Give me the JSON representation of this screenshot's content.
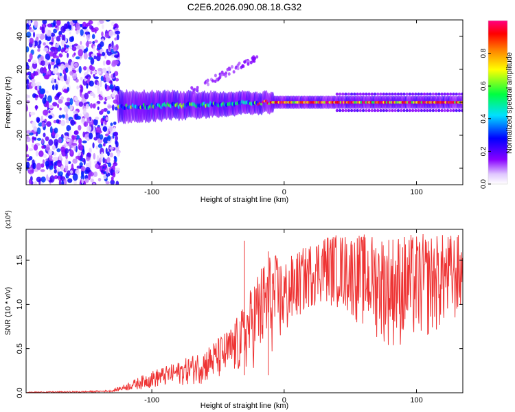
{
  "title": "C2E6.2026.090.08.18.G32",
  "chart_data": [
    {
      "type": "heatmap",
      "name": "spectrogram",
      "xlabel": "Height of straight line (km)",
      "ylabel": "Frequency (Hz)",
      "xlim": [
        -195,
        135
      ],
      "ylim": [
        -50,
        50
      ],
      "xticks": [
        -100,
        0,
        100
      ],
      "xtick_labels": [
        "-100",
        "0",
        "100"
      ],
      "yticks": [
        -40,
        -20,
        0,
        20,
        40
      ],
      "ytick_labels": [
        "-40",
        "-20",
        "0",
        "20",
        "40"
      ],
      "colorbar": {
        "label": "Normalized spectral amplitude",
        "range": [
          0,
          1
        ],
        "ticks": [
          0.0,
          0.2,
          0.4,
          0.6,
          0.8
        ],
        "tick_labels": [
          "0.0",
          "0.2",
          "0.4",
          "0.6",
          "0.8"
        ],
        "colormap": [
          "#ffffff",
          "#e0c8ff",
          "#8800ff",
          "#0000ff",
          "#00e0ff",
          "#00ff40",
          "#ffff00",
          "#ff8000",
          "#ff0000",
          "#ff0080"
        ]
      },
      "regions": [
        {
          "description": "broadband noise",
          "x_range": [
            -195,
            -125
          ],
          "y_range": [
            -50,
            50
          ],
          "amplitude": 0.15
        },
        {
          "description": "main signal band",
          "x_range": [
            -125,
            135
          ],
          "center_freq": 0,
          "amplitude": 0.9
        },
        {
          "description": "sidebands",
          "x_range": [
            40,
            135
          ],
          "freqs": [
            5,
            -5
          ],
          "amplitude": 0.2
        },
        {
          "description": "drift branch",
          "x_range": [
            -70,
            -20
          ],
          "y_range": [
            5,
            35
          ],
          "amplitude": 0.15
        }
      ]
    },
    {
      "type": "line",
      "name": "snr",
      "xlabel": "Height of straight line (km)",
      "ylabel": "SNR (10 * v/v)",
      "multiplier_label": "(x10",
      "multiplier_exponent": "4",
      "multiplier_close": ")",
      "xlim": [
        -195,
        135
      ],
      "ylim": [
        0,
        1.85
      ],
      "xticks": [
        -100,
        0,
        100
      ],
      "xtick_labels": [
        "-100",
        "0",
        "100"
      ],
      "yticks": [
        0.0,
        0.5,
        1.0,
        1.5
      ],
      "ytick_labels": [
        "0.0",
        "0.5",
        "1.0",
        "1.5"
      ],
      "color": "#ee3333",
      "envelope_x": [
        -195,
        -150,
        -130,
        -120,
        -100,
        -80,
        -60,
        -40,
        -30,
        -20,
        -10,
        0,
        10,
        20,
        30,
        40,
        50,
        60,
        70,
        80,
        90,
        100,
        110,
        120,
        135
      ],
      "envelope_lo": [
        0.0,
        0.0,
        0.01,
        0.02,
        0.05,
        0.08,
        0.1,
        0.15,
        0.2,
        0.3,
        0.4,
        0.55,
        0.8,
        0.95,
        1.0,
        0.95,
        0.85,
        0.7,
        0.6,
        0.5,
        0.5,
        0.55,
        0.6,
        0.7,
        0.8
      ],
      "envelope_hi": [
        0.01,
        0.02,
        0.03,
        0.1,
        0.25,
        0.35,
        0.5,
        0.75,
        1.0,
        1.4,
        1.6,
        1.5,
        1.6,
        1.7,
        1.8,
        1.8,
        1.8,
        1.8,
        1.8,
        1.8,
        1.8,
        1.8,
        1.8,
        1.8,
        1.8
      ],
      "annotations": [
        {
          "x": -30,
          "y": 1.72,
          "note": "spike"
        },
        {
          "x": -12,
          "y": 1.6,
          "note": "spike"
        }
      ]
    }
  ]
}
